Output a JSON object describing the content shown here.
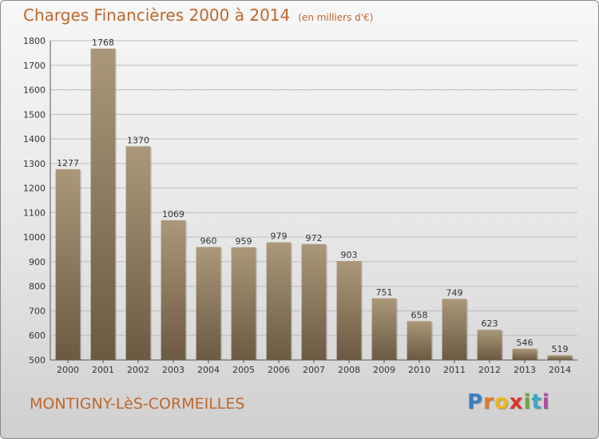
{
  "title": "Charges Financières 2000 à 2014",
  "subtitle": "(en milliers d'€)",
  "commune": "MONTIGNY-LèS-CORMEILLES",
  "logo": {
    "text": "Proxiti",
    "letter_colors": [
      "#3a7fc4",
      "#e0762a",
      "#e8b820",
      "#d9342b",
      "#6aaa3a",
      "#3aa7c4",
      "#b04aa0"
    ]
  },
  "colors": {
    "title": "#c0672a",
    "bar_light": "#ab987a",
    "bar_dark": "#6b5a42",
    "grid": "#bcbcbc"
  },
  "chart_data": {
    "type": "bar",
    "categories": [
      "2000",
      "2001",
      "2002",
      "2003",
      "2004",
      "2005",
      "2006",
      "2007",
      "2008",
      "2009",
      "2010",
      "2011",
      "2012",
      "2013",
      "2014"
    ],
    "values": [
      1277,
      1768,
      1370,
      1069,
      960,
      959,
      979,
      972,
      903,
      751,
      658,
      749,
      623,
      546,
      519
    ],
    "ylim": [
      500,
      1800
    ],
    "yticks": [
      500,
      600,
      700,
      800,
      900,
      1000,
      1100,
      1200,
      1300,
      1400,
      1500,
      1600,
      1700,
      1800
    ],
    "grid": true,
    "data_labels": true
  }
}
